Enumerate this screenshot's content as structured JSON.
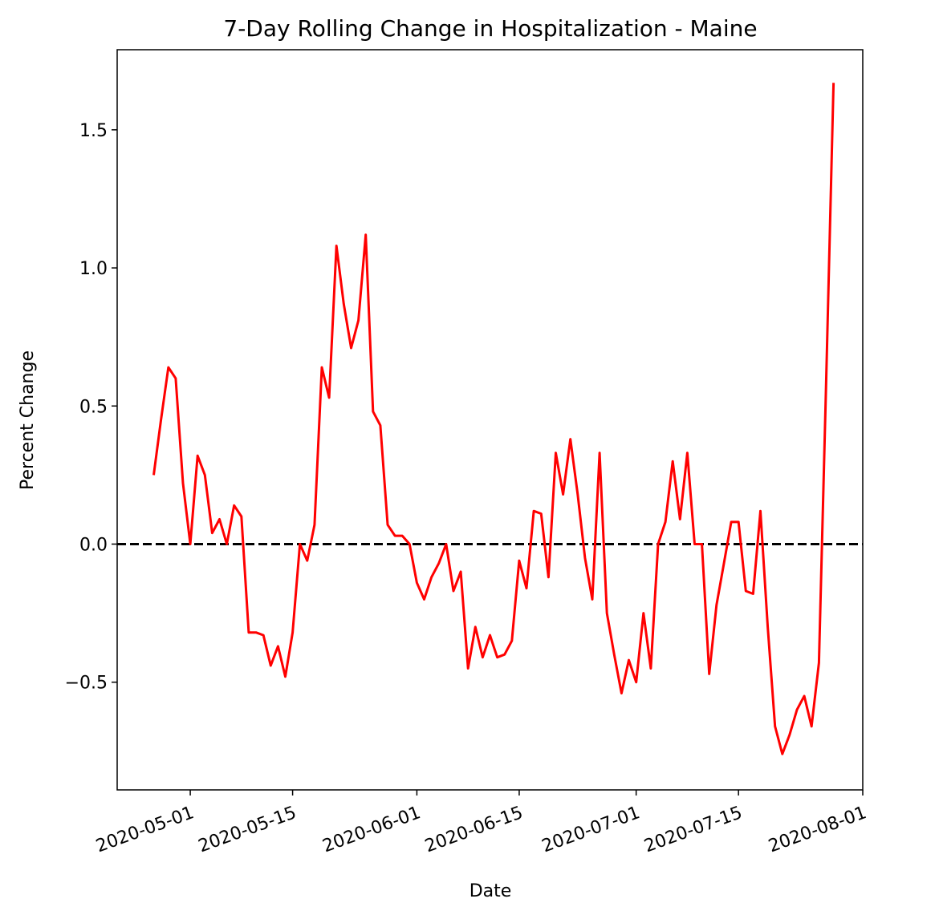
{
  "chart_data": {
    "type": "line",
    "title": "7-Day Rolling Change in Hospitalization - Maine",
    "xlabel": "Date",
    "ylabel": "Percent Change",
    "x_start": "2020-04-21",
    "xlim": [
      "2020-04-21",
      "2020-08-01"
    ],
    "ylim": [
      -0.89,
      1.79
    ],
    "xticks": [
      "2020-05-01",
      "2020-05-15",
      "2020-06-01",
      "2020-06-15",
      "2020-07-01",
      "2020-07-15",
      "2020-08-01"
    ],
    "yticks": [
      -0.5,
      0.0,
      0.5,
      1.0,
      1.5
    ],
    "ytick_labels": [
      "−0.5",
      "0.0",
      "0.5",
      "1.0",
      "1.5"
    ],
    "grid": false,
    "reference_line": {
      "y": 0.0,
      "style": "dashed",
      "color": "#000000"
    },
    "series": [
      {
        "color": "#ff0000",
        "start_date": "2020-04-26",
        "values": [
          0.25,
          0.45,
          0.64,
          0.6,
          0.22,
          0.0,
          0.32,
          0.25,
          0.04,
          0.09,
          0.0,
          0.14,
          0.1,
          -0.32,
          -0.32,
          -0.33,
          -0.44,
          -0.37,
          -0.48,
          -0.32,
          0.0,
          -0.06,
          0.07,
          0.64,
          0.53,
          1.08,
          0.87,
          0.71,
          0.81,
          1.12,
          0.48,
          0.43,
          0.07,
          0.03,
          0.03,
          0.0,
          -0.14,
          -0.2,
          -0.12,
          -0.07,
          0.0,
          -0.17,
          -0.1,
          -0.45,
          -0.3,
          -0.41,
          -0.33,
          -0.41,
          -0.4,
          -0.35,
          -0.06,
          -0.16,
          0.12,
          0.11,
          -0.12,
          0.33,
          0.18,
          0.38,
          0.18,
          -0.05,
          -0.2,
          0.33,
          -0.25,
          -0.4,
          -0.54,
          -0.42,
          -0.5,
          -0.25,
          -0.45,
          0.0,
          0.08,
          0.3,
          0.09,
          0.33,
          0.0,
          0.0,
          -0.47,
          -0.22,
          -0.07,
          0.08,
          0.08,
          -0.17,
          -0.18,
          0.12,
          -0.3,
          -0.66,
          -0.76,
          -0.69,
          -0.6,
          -0.55,
          -0.66,
          -0.43,
          0.6,
          1.67
        ]
      }
    ]
  }
}
